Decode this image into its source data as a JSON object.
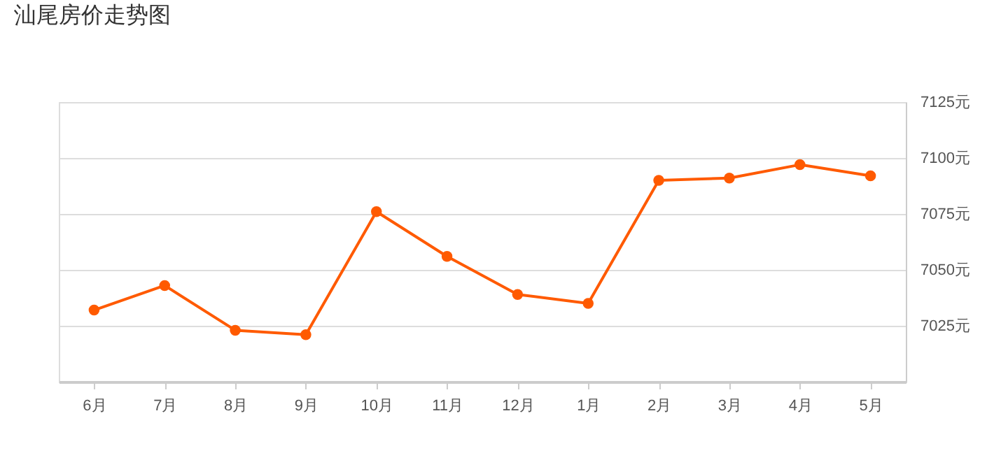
{
  "chart_data": {
    "type": "line",
    "title": "汕尾房价走势图",
    "categories": [
      "6月",
      "7月",
      "8月",
      "9月",
      "10月",
      "11月",
      "12月",
      "1月",
      "2月",
      "3月",
      "4月",
      "5月"
    ],
    "series": [
      {
        "color": "#ff5a00",
        "values": [
          7032,
          7043,
          7023,
          7021,
          7076,
          7056,
          7039,
          7035,
          7090,
          7091,
          7097,
          7092
        ]
      }
    ],
    "ylim": [
      7000,
      7125
    ],
    "yticks": [
      {
        "value": 7000,
        "label": null
      },
      {
        "value": 7025,
        "label": "7025元"
      },
      {
        "value": 7050,
        "label": "7050元"
      },
      {
        "value": 7075,
        "label": "7075元"
      },
      {
        "value": 7100,
        "label": "7100元"
      },
      {
        "value": 7125,
        "label": "7125元"
      }
    ],
    "grid": "y",
    "legend": false,
    "marker": "circle",
    "line_style": "solid"
  }
}
